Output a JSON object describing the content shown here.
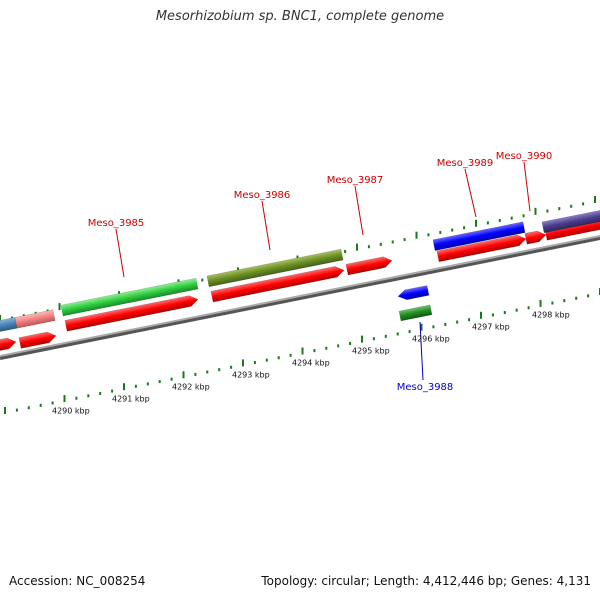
{
  "title": "Mesorhizobium sp. BNC1, complete genome",
  "footer": {
    "accession": "Accession: NC_008254",
    "topology": "Topology: circular; Length: 4,412,446 bp; Genes: 4,131"
  },
  "colors": {
    "backbone": "#808080",
    "forward_cds": "#ff0000",
    "reverse_cds": "#0000ff",
    "label_forward": "#cc0000",
    "label_reverse": "#0000cc",
    "tick": "#1a7a1a",
    "cog_green": "#2ecc40",
    "cog_olive": "#6b8e23",
    "cog_blue": "#0000ff",
    "cog_purple": "#483d8b",
    "cog_darkgreen": "#228b22",
    "cog_pink": "#f08080",
    "cog_steel": "#4682b4"
  },
  "ticks": [
    {
      "label": "4290 kbp"
    },
    {
      "label": "4291 kbp"
    },
    {
      "label": "4292 kbp"
    },
    {
      "label": "4293 kbp"
    },
    {
      "label": "4294 kbp"
    },
    {
      "label": "4295 kbp"
    },
    {
      "label": "4296 kbp"
    },
    {
      "label": "4297 kbp"
    },
    {
      "label": "4298 kbp"
    }
  ],
  "genes": [
    {
      "name": "Meso_3985",
      "strand": "forward"
    },
    {
      "name": "Meso_3986",
      "strand": "forward"
    },
    {
      "name": "Meso_3987",
      "strand": "forward"
    },
    {
      "name": "Meso_3988",
      "strand": "reverse"
    },
    {
      "name": "Meso_3989",
      "strand": "forward"
    },
    {
      "name": "Meso_3990",
      "strand": "forward"
    }
  ]
}
